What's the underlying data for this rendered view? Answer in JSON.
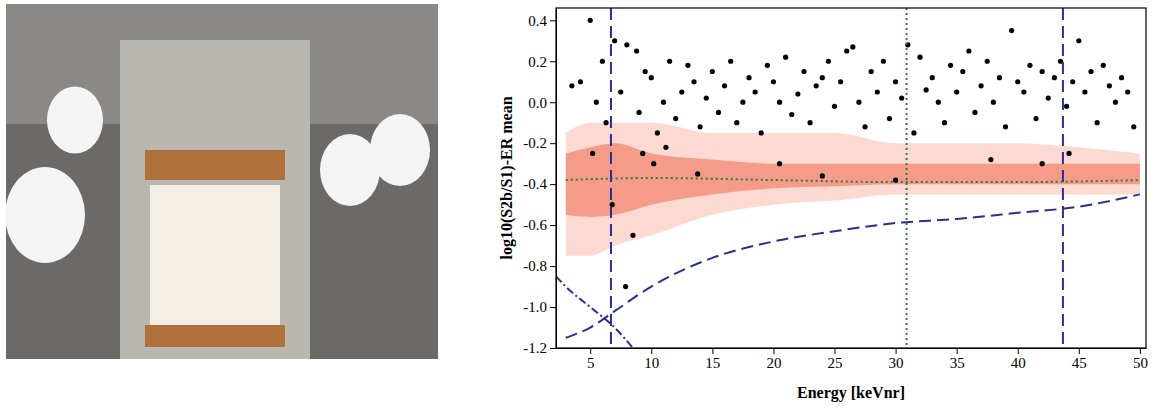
{
  "chart_data": {
    "type": "scatter",
    "xlabel": "Energy [keVnr]",
    "ylabel": "log10(S2b/S1)-ER mean",
    "xlim": [
      2.2,
      50.5
    ],
    "ylim": [
      -1.2,
      0.46
    ],
    "xticks": [
      5,
      10,
      15,
      20,
      25,
      30,
      35,
      40,
      45,
      50
    ],
    "yticks": [
      {
        "value": -1.2,
        "label": "-1.2"
      },
      {
        "value": -1.0,
        "label": "-1.0"
      },
      {
        "value": -0.8,
        "label": "-0.8"
      },
      {
        "value": -0.6,
        "label": "-0.6"
      },
      {
        "value": -0.4,
        "label": "-0.4"
      },
      {
        "value": -0.2,
        "label": "-0.2"
      },
      {
        "value": 0,
        "label": "0.0"
      },
      {
        "value": 0.2,
        "label": "0.2"
      },
      {
        "value": 0.4,
        "label": "0.4"
      }
    ],
    "grid": false,
    "series": [
      {
        "type": "area",
        "color": "#fbd3ca",
        "x": [
          3,
          5,
          7,
          10,
          15,
          20,
          25,
          30,
          35,
          40,
          45,
          50
        ],
        "upper": [
          -0.15,
          -0.1,
          -0.1,
          -0.1,
          -0.15,
          -0.15,
          -0.15,
          -0.2,
          -0.2,
          -0.2,
          -0.22,
          -0.25
        ],
        "lower": [
          -0.75,
          -0.75,
          -0.7,
          -0.65,
          -0.55,
          -0.5,
          -0.48,
          -0.45,
          -0.45,
          -0.45,
          -0.45,
          -0.45
        ]
      },
      {
        "type": "area",
        "color": "#f2907d",
        "x": [
          3,
          5,
          7,
          10,
          15,
          20,
          25,
          30,
          35,
          40,
          45,
          50
        ],
        "upper": [
          -0.25,
          -0.22,
          -0.2,
          -0.25,
          -0.28,
          -0.3,
          -0.3,
          -0.3,
          -0.3,
          -0.3,
          -0.3,
          -0.3
        ],
        "lower": [
          -0.55,
          -0.56,
          -0.55,
          -0.5,
          -0.45,
          -0.42,
          -0.41,
          -0.4,
          -0.4,
          -0.4,
          -0.4,
          -0.4
        ]
      },
      {
        "type": "line",
        "color": "#2f7a3a",
        "line_style": "dotted",
        "x": [
          3,
          10,
          20,
          30,
          40,
          50
        ],
        "values": [
          -0.38,
          -0.37,
          -0.38,
          -0.39,
          -0.39,
          -0.38
        ]
      },
      {
        "type": "line",
        "color": "#2b2f8f",
        "line_style": "dashed",
        "x": [
          3,
          5,
          7,
          10,
          15,
          20,
          25,
          30,
          35,
          40,
          45,
          50
        ],
        "values": [
          -1.15,
          -1.1,
          -1.02,
          -0.9,
          -0.76,
          -0.68,
          -0.63,
          -0.59,
          -0.57,
          -0.54,
          -0.51,
          -0.45
        ]
      },
      {
        "type": "line",
        "color": "#2b2f8f",
        "line_style": "dashdot",
        "x": [
          2.2,
          3,
          5,
          7,
          8.5
        ],
        "values": [
          -0.85,
          -0.9,
          -1.0,
          -1.1,
          -1.2
        ]
      },
      {
        "type": "scatter",
        "color": "#000000",
        "marker": "circle",
        "x": [
          3.5,
          4.2,
          5,
          5.5,
          6,
          6.3,
          7,
          7.5,
          8,
          8.8,
          9,
          9.5,
          10,
          10.5,
          11,
          11.5,
          12,
          12.5,
          13,
          13.5,
          14,
          14.5,
          15,
          15.5,
          16,
          16.5,
          17,
          17.5,
          18,
          18.5,
          19,
          19.5,
          20,
          20.5,
          21,
          21.5,
          22,
          22.5,
          23,
          23.5,
          24,
          24.5,
          25,
          25.5,
          26,
          26.5,
          27,
          27.5,
          28,
          28.5,
          29,
          29.5,
          30,
          30.5,
          31,
          31.5,
          32,
          32.5,
          33,
          33.5,
          34,
          34.5,
          35,
          35.5,
          36,
          36.5,
          37,
          37.5,
          38,
          38.5,
          39,
          39.5,
          40,
          40.5,
          41,
          41.5,
          42,
          42.5,
          43,
          43.5,
          44,
          44.5,
          45,
          45.5,
          46,
          46.5,
          47,
          47.5,
          48,
          48.5,
          49,
          49.5,
          5.2,
          6.8,
          7.9,
          8.5,
          9.3,
          10.2,
          11.2,
          13.8,
          24,
          37.8,
          44.2,
          20.5,
          30,
          42
        ],
        "values": [
          0.08,
          0.1,
          0.4,
          0.0,
          0.2,
          -0.1,
          0.3,
          0.05,
          0.28,
          0.25,
          -0.05,
          0.15,
          0.12,
          -0.15,
          0.0,
          0.2,
          -0.08,
          0.05,
          0.18,
          0.1,
          -0.12,
          0.02,
          0.15,
          -0.05,
          0.08,
          0.2,
          -0.1,
          0.0,
          0.12,
          0.05,
          -0.15,
          0.18,
          0.1,
          0.0,
          0.22,
          -0.06,
          0.04,
          0.15,
          -0.1,
          0.08,
          0.12,
          0.2,
          -0.02,
          0.1,
          0.25,
          0.27,
          0.0,
          -0.12,
          0.15,
          0.05,
          0.2,
          -0.08,
          0.1,
          0.02,
          0.28,
          -0.15,
          0.22,
          0.06,
          0.12,
          0.0,
          -0.1,
          0.18,
          0.05,
          0.15,
          0.25,
          -0.05,
          0.08,
          0.2,
          0.0,
          0.12,
          -0.12,
          0.35,
          0.1,
          0.05,
          0.18,
          -0.08,
          0.15,
          0.02,
          0.12,
          0.2,
          -0.02,
          0.1,
          0.3,
          0.05,
          0.15,
          -0.1,
          0.18,
          0.08,
          0.0,
          0.12,
          0.05,
          -0.12,
          -0.25,
          -0.5,
          -0.9,
          -0.65,
          -0.25,
          -0.3,
          -0.22,
          -0.35,
          -0.36,
          -0.28,
          -0.25,
          -0.3,
          -0.38,
          -0.3
        ]
      }
    ],
    "vlines": [
      {
        "x": 6.7,
        "color": "#2b2f8f",
        "line_style": "dashed"
      },
      {
        "x": 30.9,
        "color": "#2f7a3a",
        "line_style": "dotted"
      },
      {
        "x": 43.7,
        "color": "#2b2f8f",
        "line_style": "dashed"
      }
    ]
  }
}
